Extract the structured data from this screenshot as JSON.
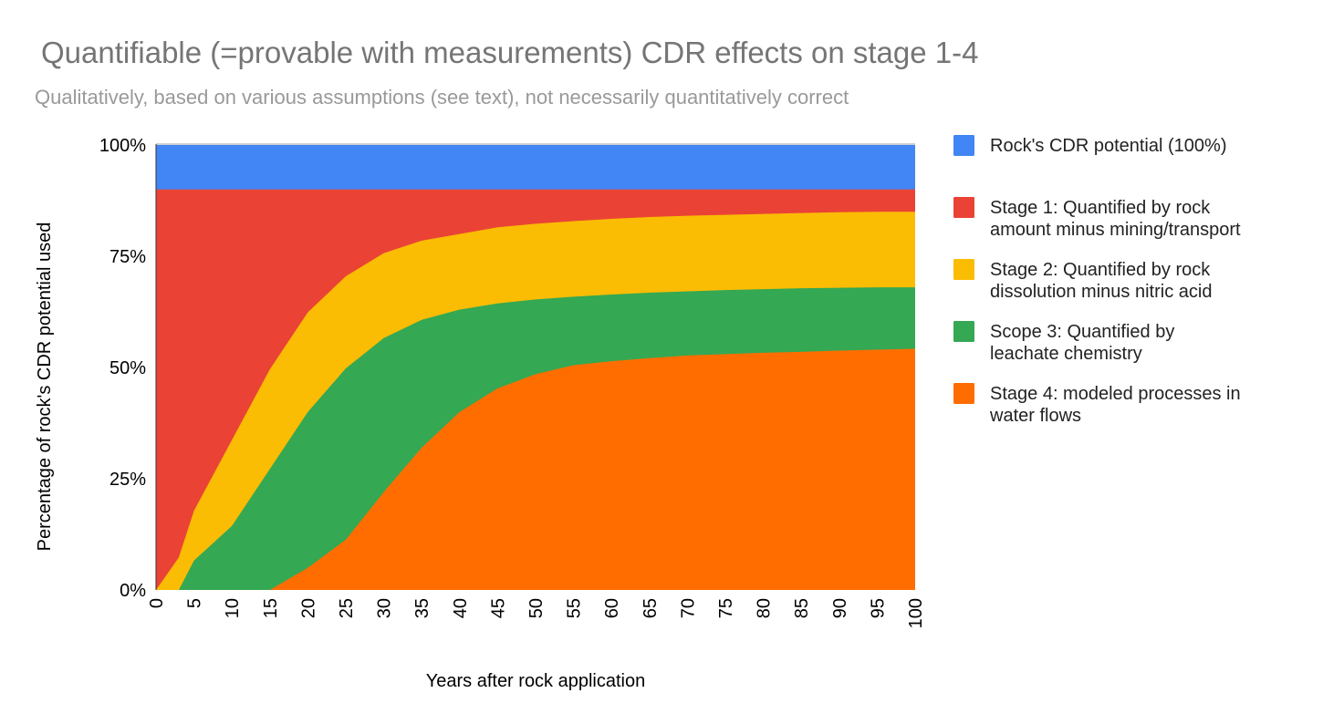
{
  "chart_data": {
    "type": "area",
    "title": "Quantifiable (=provable with measurements) CDR effects on stage 1-4",
    "subtitle": "Qualitatively, based on various assumptions (see text), not necessarily quantitatively correct",
    "xlabel": "Years after rock application",
    "ylabel": "Percentage of rock's CDR potential used",
    "xlim": [
      0,
      100
    ],
    "ylim": [
      0,
      100
    ],
    "x_ticks": [
      "0",
      "5",
      "10",
      "15",
      "20",
      "25",
      "30",
      "35",
      "40",
      "45",
      "50",
      "55",
      "60",
      "65",
      "70",
      "75",
      "80",
      "85",
      "90",
      "95",
      "100"
    ],
    "y_ticks": [
      "0%",
      "25%",
      "50%",
      "75%",
      "100%"
    ],
    "grid": false,
    "legend_position": "right",
    "x": [
      0,
      3,
      5,
      10,
      15,
      20,
      25,
      30,
      35,
      40,
      45,
      50,
      55,
      60,
      65,
      70,
      75,
      80,
      85,
      90,
      95,
      100
    ],
    "series": [
      {
        "name": "Rock's CDR potential (100%)",
        "color": "#4285f4",
        "values": [
          100,
          100,
          100,
          100,
          100,
          100,
          100,
          100,
          100,
          100,
          100,
          100,
          100,
          100,
          100,
          100,
          100,
          100,
          100,
          100,
          100,
          100
        ]
      },
      {
        "name": "Stage 1: Quantified by rock amount minus mining/transport",
        "color": "#ea4335",
        "values": [
          90,
          90,
          90,
          90,
          90,
          90,
          90,
          90,
          90,
          90,
          90,
          90,
          90,
          90,
          90,
          90,
          90,
          90,
          90,
          90,
          90,
          90
        ]
      },
      {
        "name": "Stage 2: Quantified by rock dissolution minus nitric acid",
        "color": "#fbbc04",
        "values": [
          0,
          7.3,
          17.8,
          33.7,
          49.6,
          62.4,
          70.5,
          75.7,
          78.5,
          80,
          81.5,
          82.3,
          82.9,
          83.4,
          83.8,
          84.1,
          84.3,
          84.5,
          84.7,
          84.9,
          85,
          85
        ]
      },
      {
        "name": "Scope 3: Quantified by leachate chemistry",
        "color": "#34a853",
        "values": [
          0,
          0,
          6.6,
          14.4,
          27.2,
          40,
          49.8,
          56.6,
          60.7,
          63,
          64.4,
          65.3,
          65.9,
          66.4,
          66.8,
          67.1,
          67.4,
          67.6,
          67.8,
          67.9,
          68,
          68
        ]
      },
      {
        "name": "Stage 4: modeled processes in water flows",
        "color": "#ff6d01",
        "values": [
          0,
          0,
          0,
          0,
          0,
          5,
          11.3,
          22,
          32,
          40,
          45.3,
          48.5,
          50.5,
          51.4,
          52.1,
          52.7,
          53,
          53.3,
          53.5,
          53.8,
          54,
          54.2
        ]
      }
    ]
  }
}
